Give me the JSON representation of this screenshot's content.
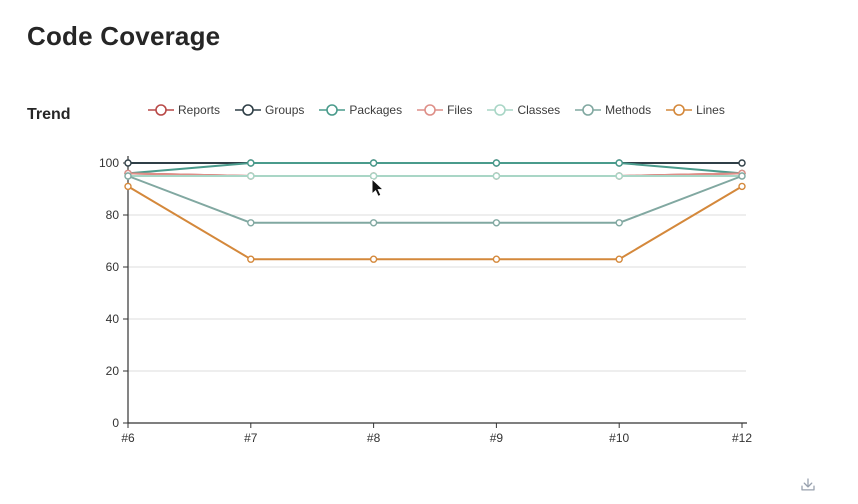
{
  "header": {
    "title": "Code Coverage"
  },
  "trend": {
    "label": "Trend"
  },
  "icons": {
    "download": "download-icon",
    "cursor": "mouse-cursor"
  },
  "chart_data": {
    "type": "line",
    "title": "Trend",
    "xlabel": "",
    "ylabel": "",
    "categories": [
      "#6",
      "#7",
      "#8",
      "#9",
      "#10",
      "#12"
    ],
    "series": [
      {
        "name": "Reports",
        "color": "#b94a48",
        "values": [
          96,
          95,
          95,
          95,
          95,
          96
        ]
      },
      {
        "name": "Groups",
        "color": "#2f3f47",
        "values": [
          100,
          100,
          100,
          100,
          100,
          100
        ]
      },
      {
        "name": "Packages",
        "color": "#4a9b8c",
        "values": [
          96,
          100,
          100,
          100,
          100,
          96
        ]
      },
      {
        "name": "Files",
        "color": "#de8f88",
        "values": [
          96,
          95,
          95,
          95,
          95,
          96
        ]
      },
      {
        "name": "Classes",
        "color": "#a9d6c6",
        "values": [
          95,
          95,
          95,
          95,
          95,
          95
        ]
      },
      {
        "name": "Methods",
        "color": "#81a8a1",
        "values": [
          95,
          77,
          77,
          77,
          77,
          95
        ]
      },
      {
        "name": "Lines",
        "color": "#d4883b",
        "values": [
          91,
          63,
          63,
          63,
          63,
          91
        ]
      }
    ],
    "ylim": [
      0,
      100
    ],
    "yticks": [
      0,
      20,
      40,
      60,
      80,
      100
    ],
    "grid": true,
    "legend_position": "top",
    "marker": "circle-open",
    "axis_color": "#333333",
    "grid_color": "#dedede"
  }
}
